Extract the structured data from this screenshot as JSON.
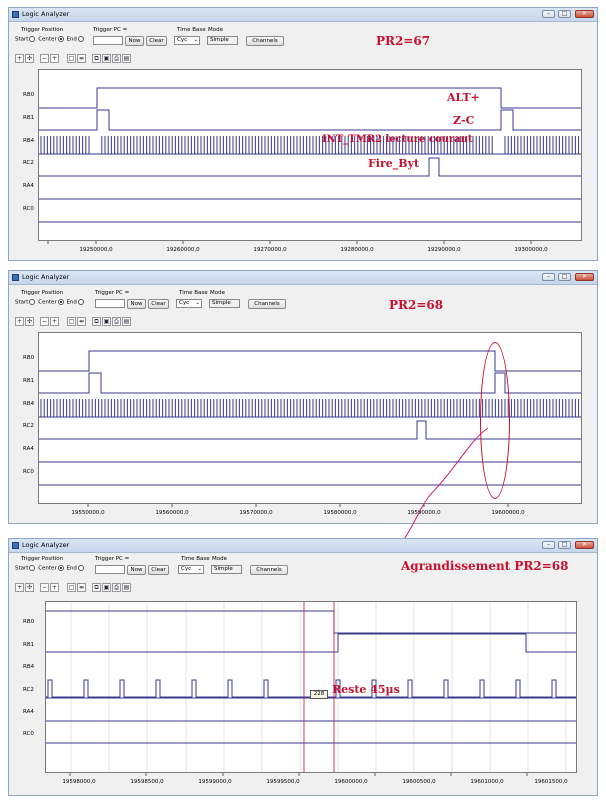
{
  "windows": [
    {
      "title": "Logic Analyzer",
      "trigger_position_label": "Trigger Position",
      "trigger_options": [
        "Start",
        "Center",
        "End"
      ],
      "trigger_selected": "Center",
      "trigger_pc_label": "Trigger PC =",
      "trigger_pc_value": "",
      "now_label": "Now",
      "clear_label": "Clear",
      "time_base_label": "Time Base",
      "time_base_value": "Cyc",
      "mode_label": "Mode",
      "mode_value": "Simple",
      "channels_label": "Channels",
      "channels": [
        "RB0",
        "RB1",
        "RB4",
        "RC2",
        "RA4",
        "RC0"
      ],
      "x_ticks": [
        "19250000,0",
        "19260000,0",
        "19270000,0",
        "19280000,0",
        "19290000,0",
        "19300000,0"
      ],
      "annotations": [
        "PR2=67",
        "ALT+",
        "Z-C",
        "INT_TMR2 lecture courant",
        "Fire_Byt"
      ]
    },
    {
      "title": "Logic Analyzer",
      "trigger_position_label": "Trigger Position",
      "trigger_options": [
        "Start",
        "Center",
        "End"
      ],
      "trigger_selected": "Center",
      "trigger_pc_label": "Trigger PC =",
      "trigger_pc_value": "",
      "now_label": "Now",
      "clear_label": "Clear",
      "time_base_label": "Time Base",
      "time_base_value": "Cyc",
      "mode_label": "Mode",
      "mode_value": "Simple",
      "channels_label": "Channels",
      "channels": [
        "RB0",
        "RB1",
        "RB4",
        "RC2",
        "RA4",
        "RC0"
      ],
      "x_ticks": [
        "19550000,0",
        "19560000,0",
        "19570000,0",
        "19580000,0",
        "19590000,0",
        "19600000,0"
      ],
      "annotations": [
        "PR2=68"
      ]
    },
    {
      "title": "Logic Analyzer",
      "trigger_position_label": "Trigger Position",
      "trigger_options": [
        "Start",
        "Center",
        "End"
      ],
      "trigger_selected": "Center",
      "trigger_pc_label": "Trigger PC =",
      "trigger_pc_value": "",
      "now_label": "Now",
      "clear_label": "Clear",
      "time_base_label": "Time Base",
      "time_base_value": "Cyc",
      "mode_label": "Mode",
      "mode_value": "Simple",
      "channels_label": "Channels",
      "channels": [
        "RB0",
        "RB1",
        "RB4",
        "RC2",
        "RA4",
        "RC0"
      ],
      "x_ticks": [
        "19598000,0",
        "19598500,0",
        "19599000,0",
        "19599500,0",
        "19600000,0",
        "19600500,0",
        "19601000,0",
        "19601500,0"
      ],
      "annotations": [
        "Agrandissement PR2=68",
        "Reste 45µs"
      ],
      "cursor_delta": "228"
    }
  ],
  "colors": {
    "trace": "#3a3a8c",
    "annotation": "#c8102e",
    "cursor": "#c8102e"
  }
}
